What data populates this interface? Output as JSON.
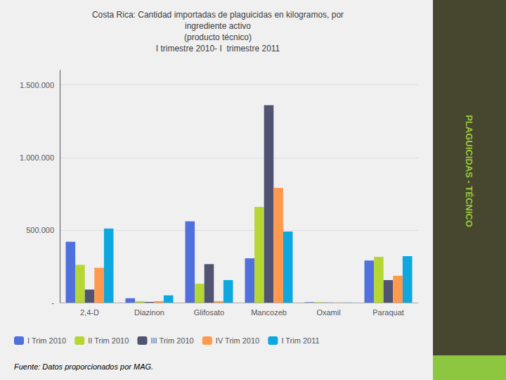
{
  "chart_data": {
    "type": "bar",
    "title": "Costa Rica: Cantidad importadas de plaguicidas en kilogramos, por\ningrediente activo\n(producto técnico)\nI trimestre 2010- I  trimestre 2011",
    "annotations": [
      "PLAGUICIDAS - TÉCNICO",
      "Fuente: Datos proporcionados por MAG."
    ],
    "categories": [
      "2,4-D",
      "Diazinon",
      "Glifosato",
      "Mancozeb",
      "Oxamil",
      "Paraquat"
    ],
    "series": [
      {
        "name": "I Trim 2010",
        "values": [
          420000,
          30000,
          560000,
          305000,
          3000,
          290000
        ]
      },
      {
        "name": "II Trim 2010",
        "values": [
          260000,
          10000,
          130000,
          660000,
          3000,
          315000
        ]
      },
      {
        "name": "III Trim 2010",
        "values": [
          90000,
          5000,
          265000,
          1360000,
          1000,
          155000
        ]
      },
      {
        "name": "IV Trim 2010",
        "values": [
          240000,
          10000,
          10000,
          790000,
          1000,
          185000
        ]
      },
      {
        "name": "I Trim 2011",
        "values": [
          510000,
          50000,
          155000,
          490000,
          1000,
          320000
        ]
      }
    ],
    "ylim": [
      0,
      1600000
    ],
    "yticks": [
      {
        "value": 0,
        "label": "-"
      },
      {
        "value": 500000,
        "label": "500.000"
      },
      {
        "value": 1000000,
        "label": "1.000.000"
      },
      {
        "value": 1500000,
        "label": "1.500.000"
      }
    ],
    "grid": true,
    "legend": "bottom"
  }
}
